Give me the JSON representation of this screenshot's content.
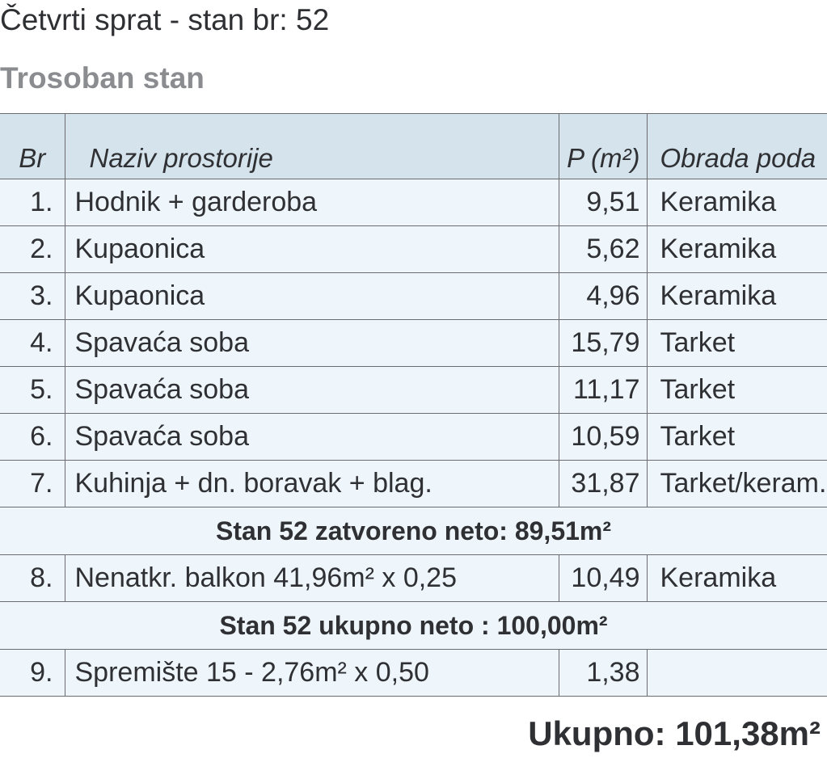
{
  "title": "Četvrti sprat -  stan br: 52",
  "subtitle": "Trosoban stan",
  "table": {
    "headers": [
      "Br",
      "Naziv prostorije",
      "P (m²)",
      "Obrada poda"
    ],
    "rows": [
      {
        "no": "1.",
        "name": "Hodnik + garderoba",
        "area": "9,51",
        "floor": "Keramika"
      },
      {
        "no": "2.",
        "name": "Kupaonica",
        "area": "5,62",
        "floor": "Keramika"
      },
      {
        "no": "3.",
        "name": "Kupaonica",
        "area": "4,96",
        "floor": "Keramika"
      },
      {
        "no": "4.",
        "name": "Spavaća soba",
        "area": "15,79",
        "floor": "Tarket"
      },
      {
        "no": "5.",
        "name": "Spavaća soba",
        "area": "11,17",
        "floor": "Tarket"
      },
      {
        "no": "6.",
        "name": "Spavaća soba",
        "area": "10,59",
        "floor": "Tarket"
      },
      {
        "no": "7.",
        "name": "Kuhinja + dn. boravak + blag.",
        "area": "31,87",
        "floor": "Tarket/keram."
      }
    ],
    "subtotal_closed": "Stan 52 zatvoreno neto: 89,51m²",
    "row8": {
      "no": "8.",
      "name": "Nenatkr. balkon 41,96m² x 0,25",
      "area": "10,49",
      "floor": "Keramika"
    },
    "subtotal_net": "Stan 52 ukupno neto : 100,00m²",
    "row9": {
      "no": "9.",
      "name": "Spremište 15 - 2,76m² x 0,50",
      "area": "1,38",
      "floor": ""
    }
  },
  "total": "Ukupno: 101,38m²"
}
